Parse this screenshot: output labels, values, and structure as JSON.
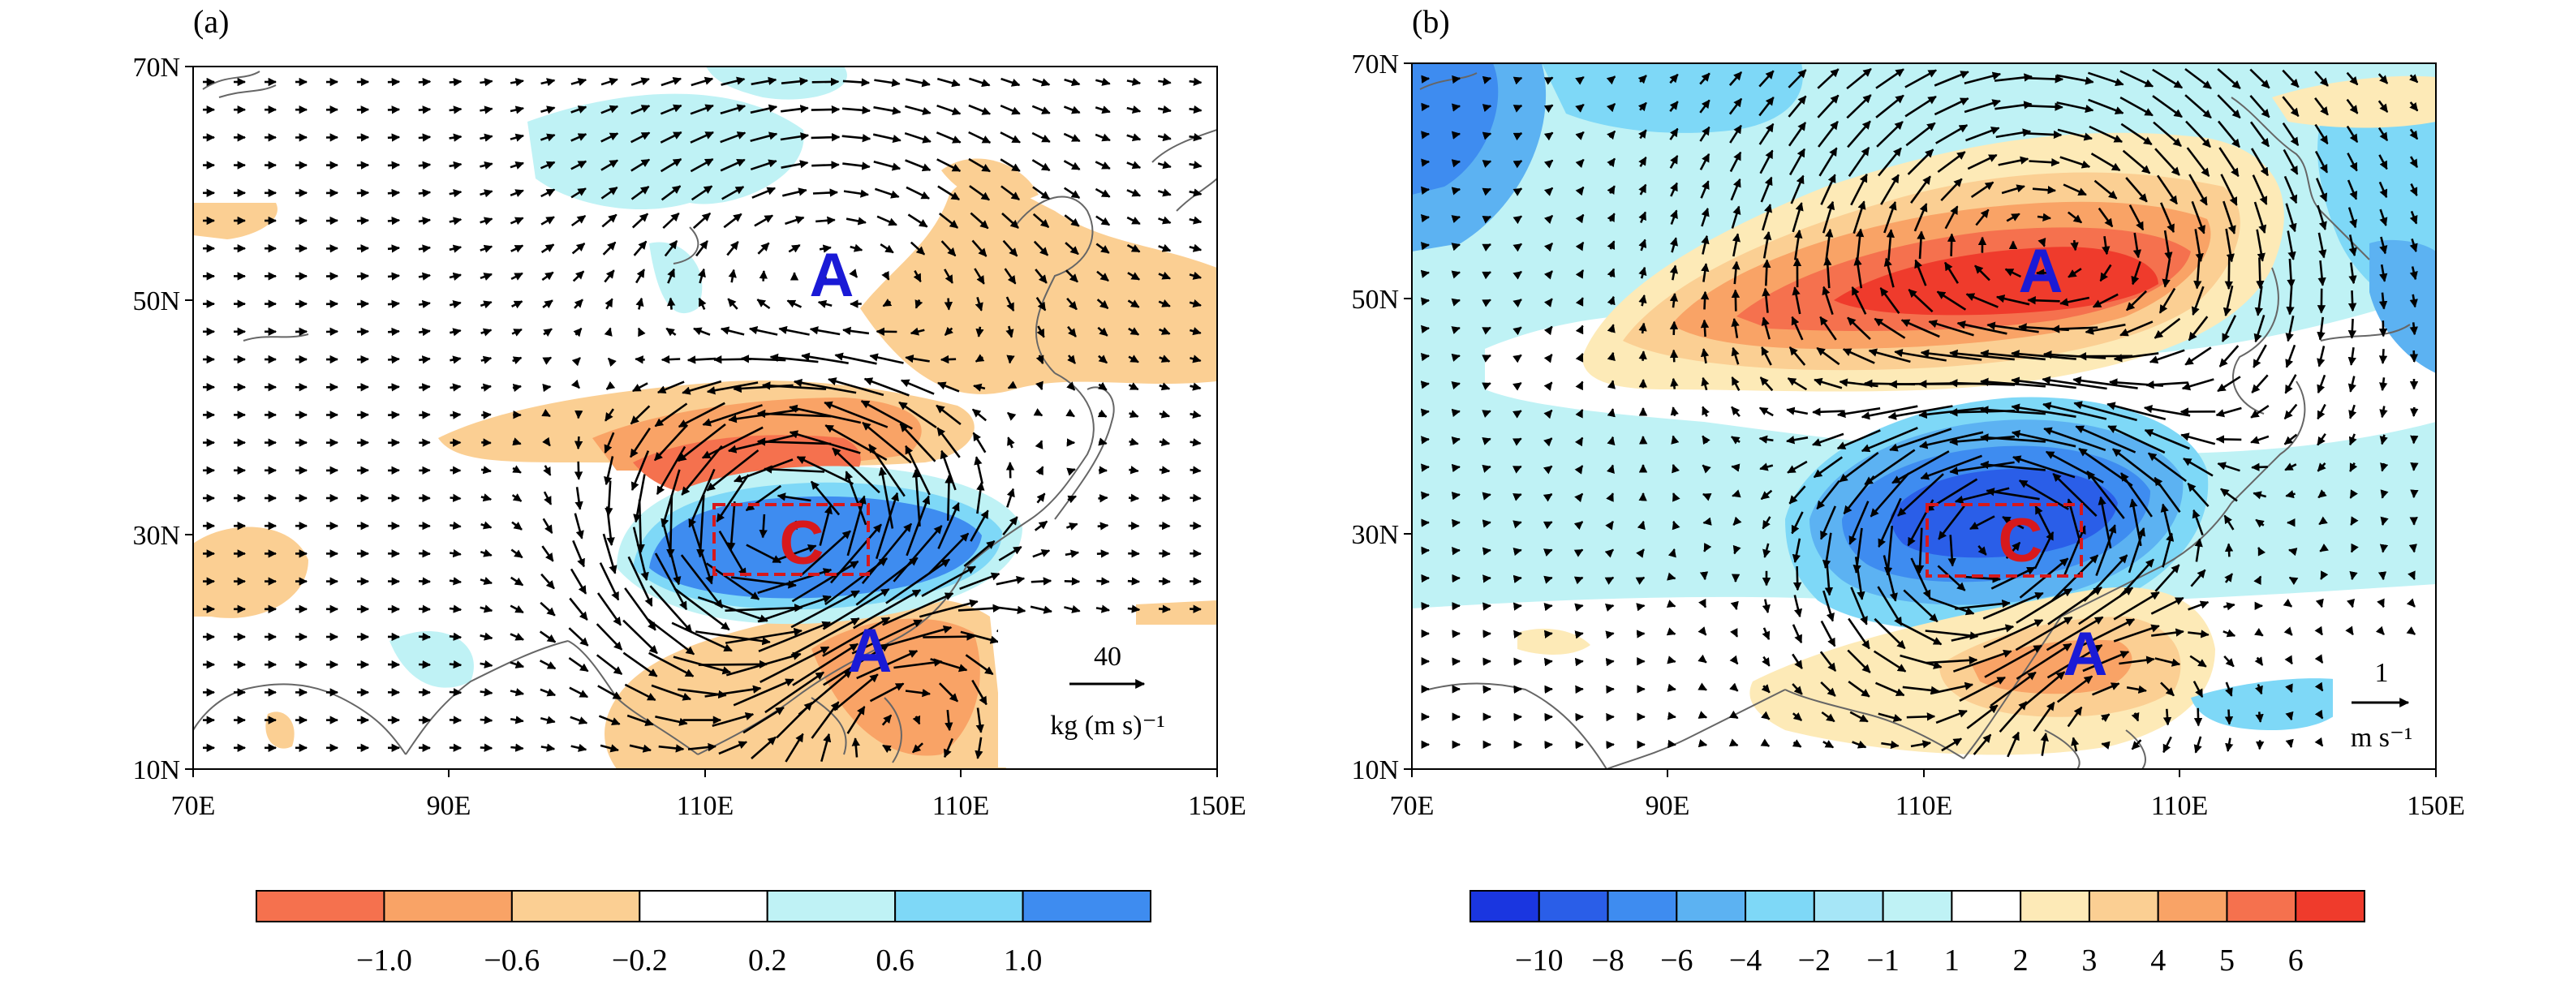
{
  "colors": {
    "red_dark": "#ef3b2c",
    "red": "#f5714e",
    "orange": "#f9a366",
    "peach": "#fbcf93",
    "light_yellow": "#fdeab7",
    "light_cyan": "#bff2f5",
    "cyan": "#7ed8f7",
    "sky": "#5cb2f2",
    "blue": "#3e8cf0",
    "blue_dark": "#2a5ee8",
    "blue_deep": "#1a36e0",
    "coast": "#666666",
    "vector": "#000000",
    "box": "#d7191c",
    "center_label": "#1a1ad6"
  },
  "panels": [
    {
      "panel_label": "(a)",
      "lat_ticks": [
        "70N",
        "50N",
        "30N",
        "10N"
      ],
      "lon_ticks": [
        "70E",
        "90E",
        "110E",
        "110E",
        "150E"
      ],
      "centers": [
        {
          "letter": "A",
          "color": "#1a1ad6"
        },
        {
          "letter": "C",
          "color": "#d7191c"
        },
        {
          "letter": "A",
          "color": "#1a1ad6"
        }
      ],
      "ref_vector": {
        "value": "40",
        "unit": "kg (m s)⁻¹"
      },
      "colorbar": {
        "colors": [
          "#f5714e",
          "#f9a366",
          "#fbcf93",
          "#ffffff",
          "#bff2f5",
          "#7ed8f7",
          "#3e8cf0"
        ],
        "labels": [
          "−1.0",
          "−0.6",
          "−0.2",
          "0.2",
          "0.6",
          "1.0"
        ]
      }
    },
    {
      "panel_label": "(b)",
      "lat_ticks": [
        "70N",
        "50N",
        "30N",
        "10N"
      ],
      "lon_ticks": [
        "70E",
        "90E",
        "110E",
        "110E",
        "150E"
      ],
      "centers": [
        {
          "letter": "A",
          "color": "#1a1ad6"
        },
        {
          "letter": "C",
          "color": "#d7191c"
        },
        {
          "letter": "A",
          "color": "#1a1ad6"
        }
      ],
      "ref_vector": {
        "value": "1",
        "unit": "m s⁻¹"
      },
      "colorbar": {
        "colors": [
          "#1a36e0",
          "#2a5ee8",
          "#3e8cf0",
          "#5cb2f2",
          "#7ed8f7",
          "#a6e6f7",
          "#bff2f5",
          "#ffffff",
          "#fdeab7",
          "#fbcf93",
          "#f9a366",
          "#f5714e",
          "#ef3b2c"
        ],
        "labels": [
          "−10",
          "−8",
          "−6",
          "−4",
          "−2",
          "−1",
          "1",
          "2",
          "3",
          "4",
          "5",
          "6"
        ]
      }
    }
  ]
}
